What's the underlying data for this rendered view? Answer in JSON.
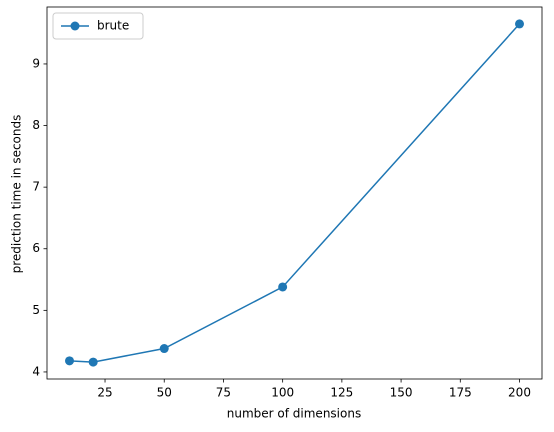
{
  "chart_data": {
    "type": "line",
    "xlabel": "number of dimensions",
    "ylabel": "prediction time in seconds",
    "x": [
      10,
      20,
      50,
      100,
      200
    ],
    "series": [
      {
        "name": "brute",
        "color": "#1f77b4",
        "values": [
          4.18,
          4.16,
          4.38,
          5.38,
          9.65
        ]
      }
    ],
    "xlim": [
      0.5,
      209.5
    ],
    "xticks": [
      25,
      50,
      75,
      100,
      125,
      150,
      175,
      200
    ],
    "ylim": [
      3.8855,
      9.9245
    ],
    "yticks": [
      4,
      5,
      6,
      7,
      8,
      9
    ],
    "legend": "upper left",
    "grid": false
  }
}
